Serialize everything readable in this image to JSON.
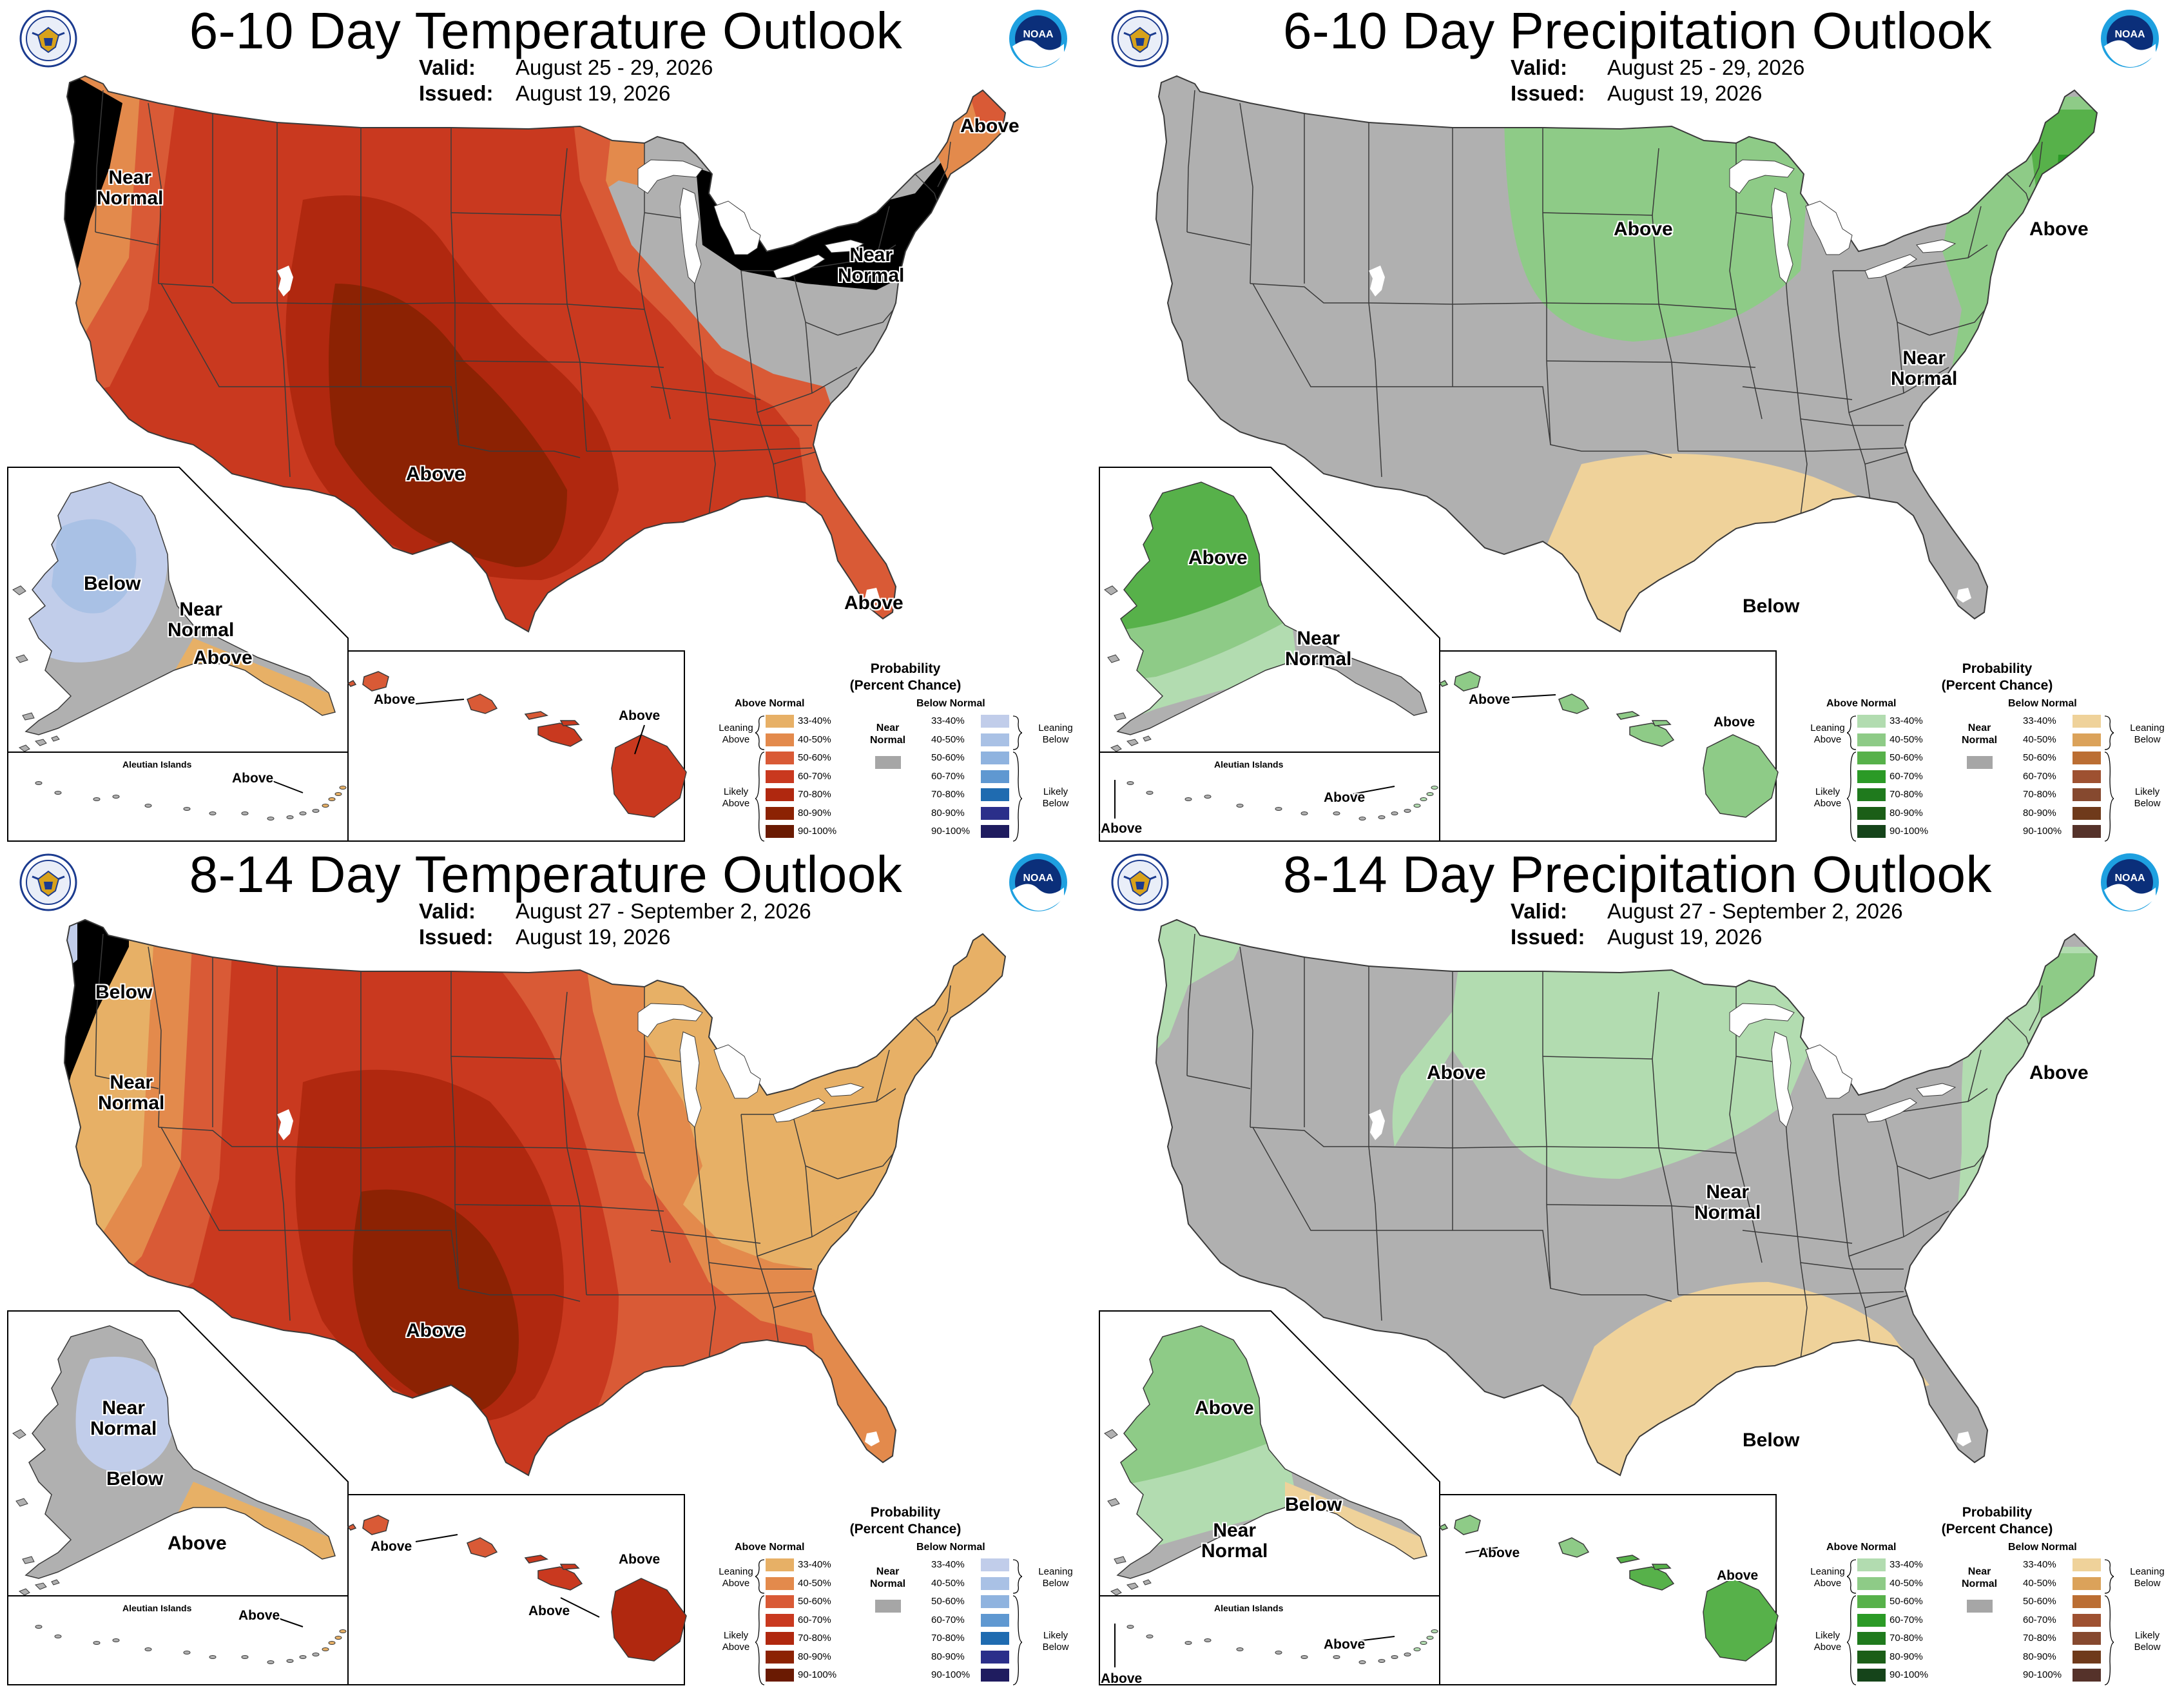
{
  "colors": {
    "near_normal": "#b0b0b0",
    "temp_above": [
      "#e7b066",
      "#e38a4c",
      "#d95a36",
      "#c9391f",
      "#b0280f",
      "#8c2203",
      "#6a1a02"
    ],
    "temp_below": [
      "#c1cdea",
      "#a9c1e5",
      "#8fb3df",
      "#5f98d1",
      "#1f6bb0",
      "#2b2f8a",
      "#1f1c5f"
    ],
    "precip_above": [
      "#b2dcb0",
      "#8ecb87",
      "#57b14a",
      "#2b9a26",
      "#1f7a1d",
      "#1b5e17",
      "#15441a"
    ],
    "precip_below": [
      "#efd29a",
      "#dba25a",
      "#bb6e33",
      "#9e5131",
      "#86492f",
      "#6f3a1b",
      "#55322a"
    ],
    "land_outline": "#3a3a3a",
    "lake": "#ffffff"
  },
  "panels": [
    {
      "id": "t610",
      "kind": "temperature",
      "title": "6-10 Day Temperature Outlook",
      "valid_label": "Valid:",
      "valid": "August 25 - 29, 2026",
      "issued_label": "Issued:",
      "issued": "August 19, 2026",
      "labels": {
        "nw": "Near Normal",
        "ne": "Above",
        "glk": "Near Normal",
        "sw": "Above",
        "se": "Above",
        "ak1": "Below",
        "ak2": "Near Normal",
        "ak3": "Above",
        "hi1": "Above",
        "hi2": "Above",
        "al": "Above"
      }
    },
    {
      "id": "p610",
      "kind": "precipitation",
      "title": "6-10 Day Precipitation Outlook",
      "valid_label": "Valid:",
      "valid": "August 25 - 29, 2026",
      "issued_label": "Issued:",
      "issued": "August 19, 2026",
      "labels": {
        "np": "Above",
        "ne": "Above",
        "mid": "Near Normal",
        "tx": "Below",
        "ak1": "Above",
        "ak2": "Near Normal",
        "hi1": "Above",
        "hi2": "Above",
        "al": "Above",
        "al2": "Above"
      }
    },
    {
      "id": "t814",
      "kind": "temperature",
      "title": "8-14 Day Temperature Outlook",
      "valid_label": "Valid:",
      "valid": "August 27 - September 2, 2026",
      "issued_label": "Issued:",
      "issued": "August 19, 2026",
      "labels": {
        "nw1": "Below",
        "nw2": "Near Normal",
        "sw": "Above",
        "ak1": "Near Normal",
        "ak2": "Below",
        "ak3": "Above",
        "hi1": "Above",
        "hi2": "Above",
        "hi3": "Above",
        "al": "Above"
      }
    },
    {
      "id": "p814",
      "kind": "precipitation",
      "title": "8-14 Day Precipitation Outlook",
      "valid_label": "Valid:",
      "valid": "August 27 - September 2, 2026",
      "issued_label": "Issued:",
      "issued": "August 19, 2026",
      "labels": {
        "np": "Above",
        "ne": "Above",
        "mid": "Near Normal",
        "tx": "Below",
        "ak1": "Above",
        "ak2": "Near Normal",
        "ak3": "Below",
        "hi1": "Above",
        "hi2": "Above",
        "al": "Above",
        "al2": "Above"
      }
    }
  ],
  "aleutian_label": "Aleutian Islands",
  "legend": {
    "title": "Probability (Percent Chance)",
    "above_head": "Above Normal",
    "below_head": "Below Normal",
    "near_normal": "Near Normal",
    "ranges": [
      "33-40%",
      "40-50%",
      "50-60%",
      "60-70%",
      "70-80%",
      "80-90%",
      "90-100%"
    ],
    "leaning_above": "Leaning Above",
    "likely_above": "Likely Above",
    "leaning_below": "Leaning Below",
    "likely_below": "Likely Below"
  }
}
